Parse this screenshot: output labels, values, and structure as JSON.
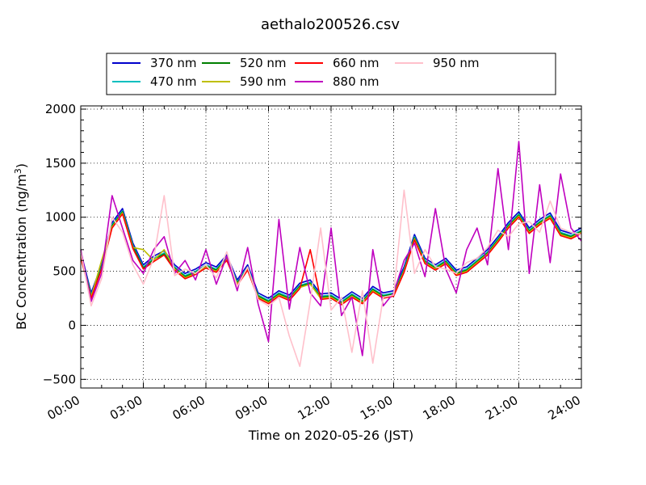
{
  "chart_data": {
    "type": "line",
    "title": "aethalo200526.csv",
    "xlabel": "Time on 2020-05-26 (JST)",
    "ylabel": "BC Concentration (ng/m3)",
    "ylabel_parts": {
      "main": "BC Concentration (ng/m",
      "sup": "3",
      "close": ")"
    },
    "xlim": [
      "00:00",
      "24:00"
    ],
    "ylim": [
      -580,
      2030
    ],
    "x_ticks": [
      "00:00",
      "03:00",
      "06:00",
      "09:00",
      "12:00",
      "15:00",
      "18:00",
      "21:00",
      "24:00"
    ],
    "y_ticks": [
      -500,
      0,
      500,
      1000,
      1500,
      2000
    ],
    "grid": true,
    "legend_position": "top, above plot",
    "x": [
      "00:00",
      "00:30",
      "01:00",
      "01:30",
      "02:00",
      "02:30",
      "03:00",
      "03:30",
      "04:00",
      "04:30",
      "05:00",
      "05:30",
      "06:00",
      "06:30",
      "07:00",
      "07:30",
      "08:00",
      "08:30",
      "09:00",
      "09:30",
      "10:00",
      "10:30",
      "11:00",
      "11:30",
      "12:00",
      "12:30",
      "13:00",
      "13:30",
      "14:00",
      "14:30",
      "15:00",
      "15:30",
      "16:00",
      "16:30",
      "17:00",
      "17:30",
      "18:00",
      "18:30",
      "19:00",
      "19:30",
      "20:00",
      "20:30",
      "21:00",
      "21:30",
      "22:00",
      "22:30",
      "23:00",
      "23:30",
      "24:00"
    ],
    "series": [
      {
        "name": "370 nm",
        "color": "#0000cc",
        "values": [
          680,
          300,
          560,
          950,
          1080,
          760,
          560,
          640,
          690,
          560,
          480,
          520,
          580,
          540,
          650,
          420,
          560,
          300,
          250,
          320,
          280,
          390,
          420,
          290,
          300,
          240,
          310,
          250,
          360,
          300,
          320,
          540,
          840,
          620,
          560,
          620,
          510,
          540,
          620,
          700,
          820,
          950,
          1050,
          900,
          980,
          1040,
          880,
          850,
          900
        ]
      },
      {
        "name": "470 nm",
        "color": "#00bfbf",
        "values": [
          660,
          280,
          540,
          930,
          1060,
          740,
          540,
          620,
          670,
          540,
          460,
          500,
          560,
          520,
          630,
          400,
          540,
          280,
          230,
          300,
          260,
          370,
          400,
          270,
          280,
          220,
          290,
          230,
          340,
          280,
          300,
          520,
          820,
          600,
          540,
          600,
          490,
          520,
          600,
          680,
          800,
          930,
          1030,
          880,
          960,
          1020,
          860,
          830,
          880
        ]
      },
      {
        "name": "520 nm",
        "color": "#007f00",
        "values": [
          650,
          270,
          530,
          920,
          1050,
          730,
          530,
          610,
          660,
          530,
          450,
          490,
          550,
          510,
          620,
          390,
          530,
          270,
          220,
          290,
          250,
          360,
          390,
          260,
          270,
          210,
          280,
          220,
          330,
          270,
          290,
          510,
          810,
          590,
          530,
          590,
          480,
          510,
          590,
          670,
          790,
          920,
          1020,
          870,
          950,
          1010,
          850,
          820,
          870
        ]
      },
      {
        "name": "590 nm",
        "color": "#bfbf00",
        "values": [
          640,
          260,
          600,
          910,
          1040,
          720,
          700,
          600,
          700,
          520,
          440,
          480,
          540,
          500,
          610,
          380,
          520,
          260,
          210,
          280,
          240,
          350,
          380,
          250,
          260,
          200,
          270,
          210,
          320,
          260,
          280,
          500,
          800,
          580,
          520,
          580,
          470,
          500,
          580,
          660,
          780,
          910,
          1010,
          860,
          940,
          1000,
          840,
          810,
          860
        ]
      },
      {
        "name": "660 nm",
        "color": "#ff0000",
        "values": [
          630,
          250,
          520,
          900,
          1030,
          710,
          520,
          590,
          650,
          510,
          430,
          470,
          530,
          490,
          600,
          370,
          510,
          250,
          200,
          270,
          230,
          340,
          700,
          240,
          250,
          190,
          260,
          200,
          310,
          250,
          270,
          490,
          790,
          570,
          510,
          570,
          460,
          490,
          570,
          650,
          770,
          900,
          1000,
          850,
          930,
          990,
          830,
          800,
          850
        ]
      },
      {
        "name": "880 nm",
        "color": "#bf00bf",
        "values": [
          700,
          220,
          480,
          1200,
          900,
          600,
          480,
          700,
          820,
          480,
          600,
          420,
          700,
          380,
          640,
          320,
          720,
          200,
          -150,
          980,
          150,
          720,
          300,
          180,
          900,
          90,
          260,
          -280,
          700,
          180,
          300,
          600,
          760,
          450,
          1080,
          520,
          300,
          700,
          900,
          560,
          1450,
          700,
          1700,
          480,
          1300,
          580,
          1400,
          900,
          780
        ]
      },
      {
        "name": "950 nm",
        "color": "#ffc0cb",
        "values": [
          680,
          180,
          430,
          1000,
          860,
          560,
          380,
          620,
          1200,
          460,
          520,
          480,
          560,
          440,
          680,
          360,
          540,
          240,
          180,
          260,
          -100,
          -380,
          220,
          900,
          140,
          260,
          -250,
          320,
          -350,
          260,
          280,
          1250,
          480,
          700,
          540,
          520,
          480,
          580,
          620,
          720,
          880,
          820,
          940,
          960,
          860,
          1150,
          900,
          860,
          840
        ]
      }
    ]
  }
}
